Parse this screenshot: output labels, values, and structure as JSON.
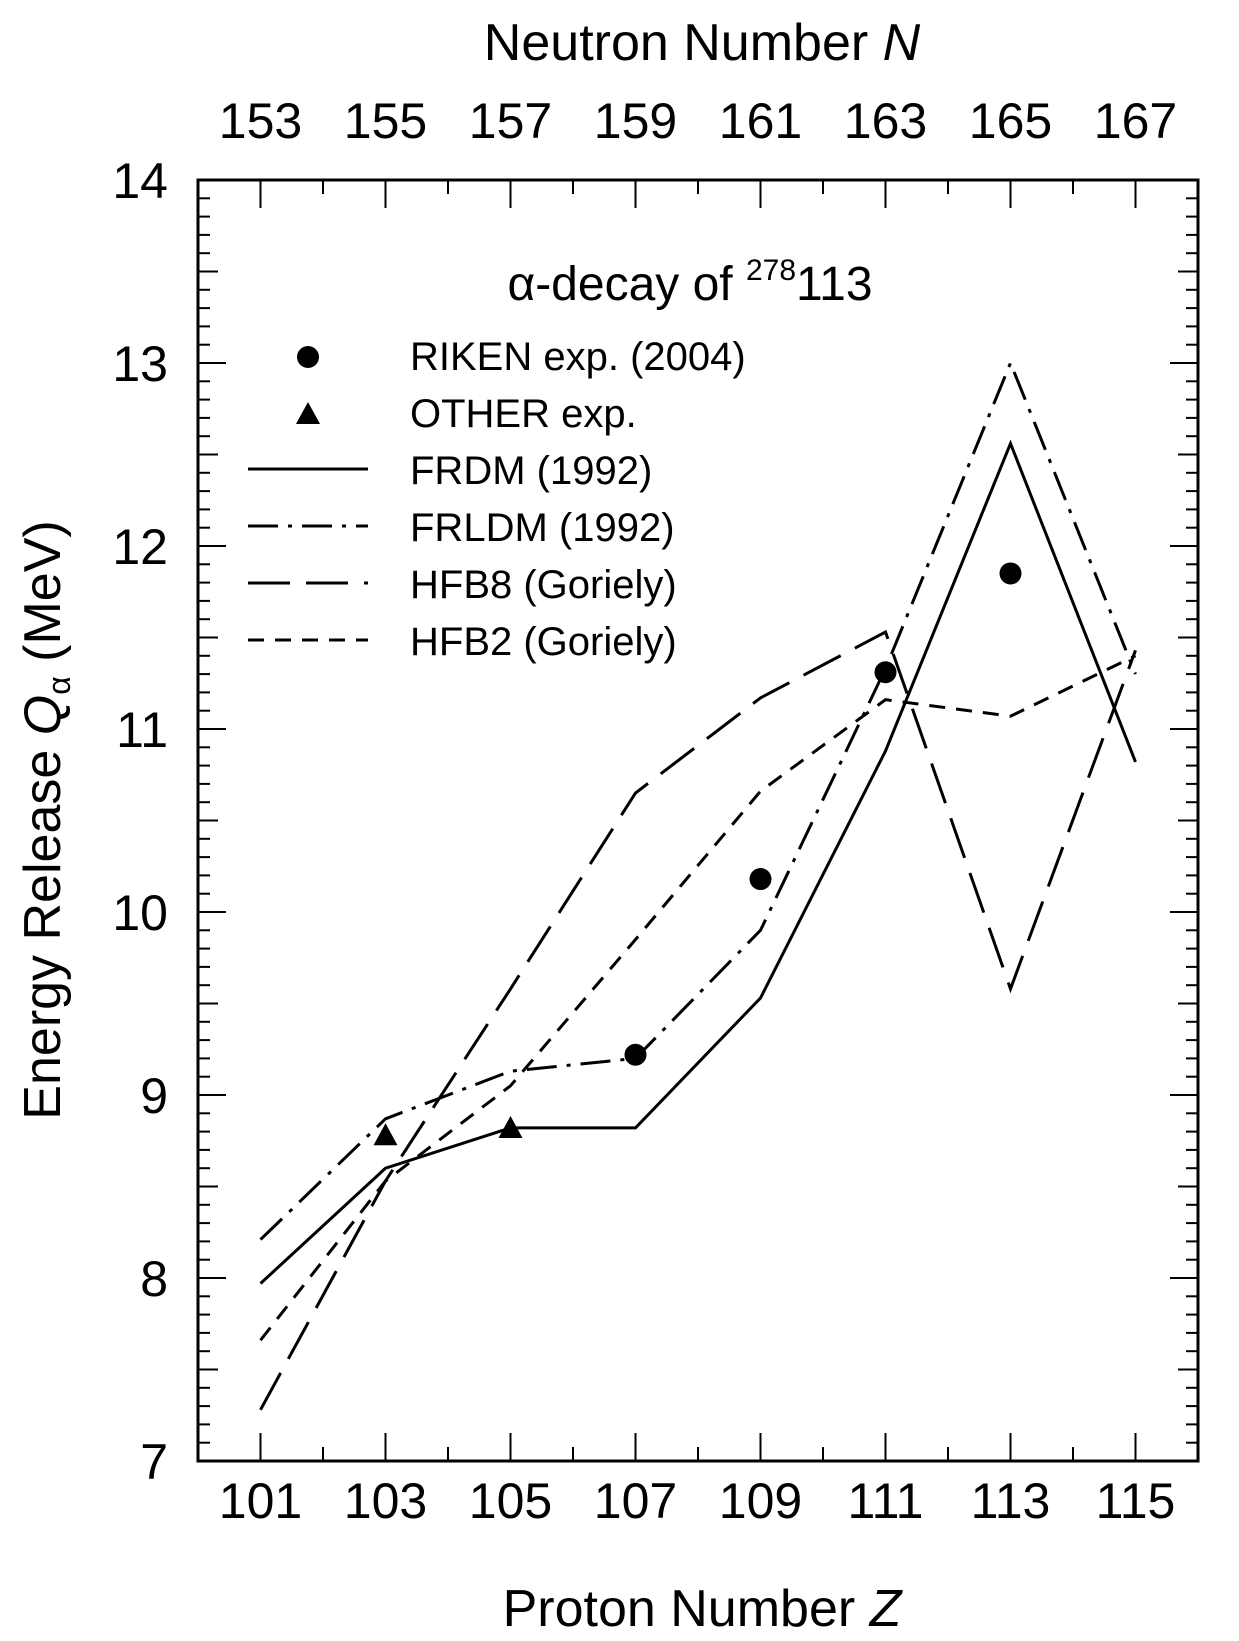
{
  "chart_data": {
    "type": "line",
    "title": "α-decay of 278113",
    "title_parts": {
      "prefix": "α-decay of ",
      "mass": "278",
      "element": "113"
    },
    "xlabel": "Proton Number Z",
    "xlabel_parts": {
      "text": "Proton Number ",
      "var": "Z"
    },
    "x2label": "Neutron Number N",
    "x2label_parts": {
      "text": "Neutron Number ",
      "var": "N"
    },
    "ylabel": "Energy Release Qα (MeV)",
    "ylabel_parts": {
      "text": "Energy Release ",
      "var": "Q",
      "sub": "α",
      "unit": " (MeV)"
    },
    "xlim": [
      100,
      116
    ],
    "ylim": [
      7,
      14
    ],
    "x_ticks": [
      101,
      103,
      105,
      107,
      109,
      111,
      113,
      115
    ],
    "x_tick_labels": [
      "101",
      "103",
      "105",
      "107",
      "109",
      "111",
      "113",
      "115"
    ],
    "x2_tick_labels": [
      "153",
      "155",
      "157",
      "159",
      "161",
      "163",
      "165",
      "167"
    ],
    "y_ticks": [
      7,
      8,
      9,
      10,
      11,
      12,
      13,
      14
    ],
    "y_tick_labels": [
      "7",
      "8",
      "9",
      "10",
      "11",
      "12",
      "13",
      "14"
    ],
    "grid": false,
    "legend_position": "upper-left",
    "series": [
      {
        "name": "RIKEN exp. (2004)",
        "style": "markers",
        "marker": "circle",
        "points": [
          {
            "x": 107,
            "y": 9.22
          },
          {
            "x": 109,
            "y": 10.18
          },
          {
            "x": 111,
            "y": 11.31
          },
          {
            "x": 113,
            "y": 11.85
          }
        ]
      },
      {
        "name": "OTHER exp.",
        "style": "markers",
        "marker": "triangle",
        "points": [
          {
            "x": 103,
            "y": 8.78
          },
          {
            "x": 105,
            "y": 8.82
          }
        ]
      },
      {
        "name": "FRDM (1992)",
        "style": "line",
        "dash": "solid",
        "points": [
          {
            "x": 101,
            "y": 7.97
          },
          {
            "x": 103,
            "y": 8.6
          },
          {
            "x": 105,
            "y": 8.82
          },
          {
            "x": 107,
            "y": 8.82
          },
          {
            "x": 109,
            "y": 9.53
          },
          {
            "x": 111,
            "y": 10.88
          },
          {
            "x": 113,
            "y": 12.56
          },
          {
            "x": 115,
            "y": 10.82
          }
        ]
      },
      {
        "name": "FRLDM (1992)",
        "style": "line",
        "dash": "dashdot",
        "points": [
          {
            "x": 101,
            "y": 8.21
          },
          {
            "x": 103,
            "y": 8.87
          },
          {
            "x": 105,
            "y": 9.13
          },
          {
            "x": 107,
            "y": 9.2
          },
          {
            "x": 109,
            "y": 9.9
          },
          {
            "x": 111,
            "y": 11.33
          },
          {
            "x": 113,
            "y": 13.0
          },
          {
            "x": 115,
            "y": 11.3
          }
        ]
      },
      {
        "name": "HFB8 (Goriely)",
        "style": "line",
        "dash": "longdash",
        "points": [
          {
            "x": 101,
            "y": 7.28
          },
          {
            "x": 103,
            "y": 8.53
          },
          {
            "x": 105,
            "y": 9.58
          },
          {
            "x": 107,
            "y": 10.65
          },
          {
            "x": 109,
            "y": 11.17
          },
          {
            "x": 111,
            "y": 11.53
          },
          {
            "x": 113,
            "y": 9.58
          },
          {
            "x": 115,
            "y": 11.43
          }
        ]
      },
      {
        "name": "HFB2 (Goriely)",
        "style": "line",
        "dash": "shortdash",
        "points": [
          {
            "x": 101,
            "y": 7.66
          },
          {
            "x": 103,
            "y": 8.53
          },
          {
            "x": 105,
            "y": 9.05
          },
          {
            "x": 107,
            "y": 9.85
          },
          {
            "x": 109,
            "y": 10.66
          },
          {
            "x": 111,
            "y": 11.16
          },
          {
            "x": 113,
            "y": 11.07
          },
          {
            "x": 115,
            "y": 11.4
          }
        ]
      }
    ]
  }
}
